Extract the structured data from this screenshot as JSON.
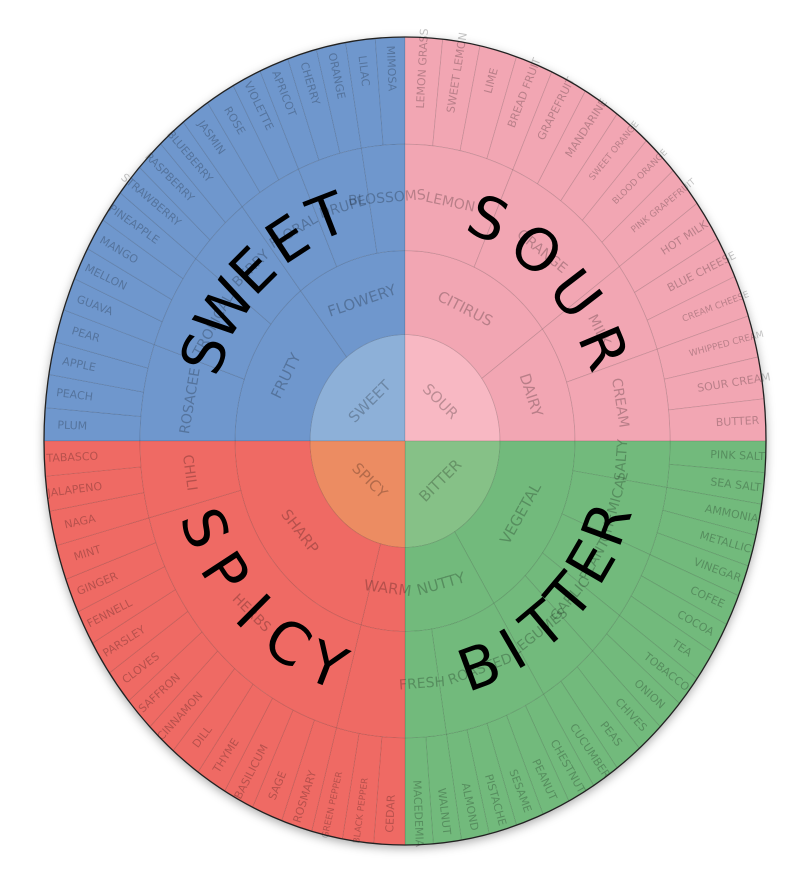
{
  "wheel": {
    "colors": {
      "sweet": "#6f97cd",
      "sour": "#f2a6b3",
      "spicy": "#ef6a64",
      "bitter": "#72ba7c",
      "spicy_center": "#ec8c62",
      "sweet_center": "#8db0d8",
      "sour_center": "#f8b8c3",
      "bitter_center": "#86c187"
    },
    "quadrants": [
      {
        "key": "sweet",
        "big_label": "SWEET",
        "center_label": "SWEET",
        "groups": [
          {
            "label": "FRUTY",
            "subs": [
              {
                "label": "ROSACEE",
                "items": [
                  "PLUM",
                  "PEACH",
                  "APPLE",
                  "PEAR"
                ]
              },
              {
                "label": "TROPICAL",
                "items": [
                  "GUAVA",
                  "MELLON",
                  "MANGO",
                  "PINEAPPLE"
                ]
              },
              {
                "label": "BERRY",
                "items": [
                  "STRAWBERRY",
                  "RASPBERRY",
                  "BLUEBERRY"
                ]
              }
            ]
          },
          {
            "label": "FLOWERY",
            "subs": [
              {
                "label": "FLORAL",
                "items": [
                  "JASMIN",
                  "ROSE",
                  "VIOLETTE"
                ]
              },
              {
                "label": "DRUPE",
                "items": [
                  "APRICOT",
                  "CHERRY",
                  "ORANGE"
                ]
              },
              {
                "label": "BLOSSOMS",
                "items": [
                  "LILAC",
                  "MIMOSA"
                ]
              }
            ]
          }
        ]
      },
      {
        "key": "sour",
        "big_label": "SOUR",
        "center_label": "SOUR",
        "groups": [
          {
            "label": "CITIRUS",
            "subs": [
              {
                "label": "LEMON",
                "items": [
                  "LEMON GRASS",
                  "SWEET LEMON",
                  "LIME",
                  "BREAD FRUIT"
                ]
              },
              {
                "label": "ORANGE",
                "items": [
                  "GRAPEFRUIT",
                  "MANDARINE",
                  "SWEET ORANGE",
                  "BLOOD ORANGE",
                  "PINK GRAPEFRUIT"
                ]
              }
            ]
          },
          {
            "label": "DAIRY",
            "subs": [
              {
                "label": "MILK",
                "items": [
                  "HOT MILK",
                  "BLUE CHEESE",
                  "CREAM CHEESE"
                ]
              },
              {
                "label": "CREAM",
                "items": [
                  "WHIPPED CREAM",
                  "SOUR CREAM",
                  "BUTTER"
                ]
              }
            ]
          }
        ]
      },
      {
        "key": "bitter",
        "big_label": "BITTER",
        "center_label": "BITTER",
        "groups": [
          {
            "label": "NUTTY",
            "subs": [
              {
                "label": "FRESH",
                "items": [
                  "MACEDEMIA",
                  "WALNUT"
                ]
              },
              {
                "label": "ROASTED",
                "items": [
                  "ALMOND",
                  "PISTACHE",
                  "SESAME",
                  "PEANUT",
                  "CHESTNUT"
                ]
              }
            ]
          },
          {
            "label": "VEGETAL",
            "subs": [
              {
                "label": "LEGUMES",
                "items": [
                  "CUCUMBER",
                  "PEAS",
                  "CHIVES"
                ]
              },
              {
                "label": "GARLIC",
                "items": [
                  "ONION",
                  "TOBACCO"
                ]
              },
              {
                "label": "PLANT",
                "items": [
                  "TEA",
                  "COCOA",
                  "COFEE"
                ]
              },
              {
                "label": "CHEMICAL",
                "items": [
                  "VINEGAR",
                  "METALLIC",
                  "AMMONIA"
                ]
              },
              {
                "label": "SALTY",
                "items": [
                  "SEA SALT",
                  "PINK SALT"
                ]
              }
            ]
          }
        ]
      },
      {
        "key": "spicy",
        "big_label": "SPICY",
        "center_label": "SPICY",
        "groups": [
          {
            "label": "SHARP",
            "subs": [
              {
                "label": "CHILI",
                "items": [
                  "TABASCO",
                  "JALAPENO",
                  "NAGA"
                ]
              },
              {
                "label": "HERBS",
                "items": [
                  "MINT",
                  "GINGER",
                  "FENNELL",
                  "PARSLEY",
                  "CLOVES",
                  "SAFFRON",
                  "CINNAMON",
                  "DILL",
                  "THYME",
                  "BASILICUM",
                  "SAGE",
                  "ROSMARY"
                ]
              }
            ]
          },
          {
            "label": "WARM",
            "subs": [
              {
                "label": "",
                "items": [
                  "GREEN PEPPER",
                  "BLACK PEPPER",
                  "CEDAR"
                ]
              }
            ]
          }
        ]
      }
    ]
  }
}
